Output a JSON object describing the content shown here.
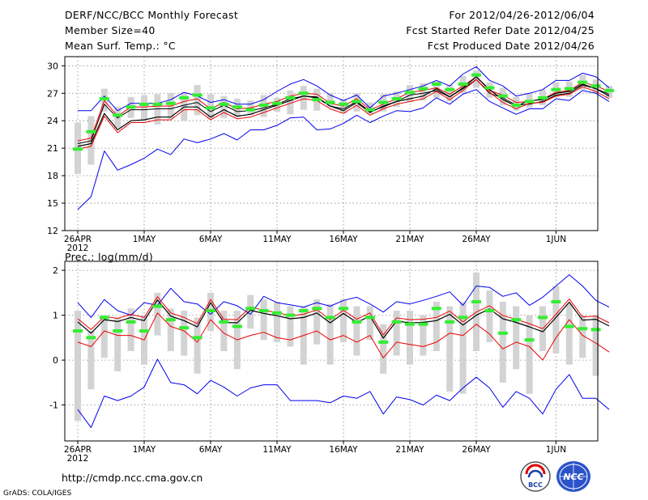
{
  "header": {
    "title": "DERF/NCC/BCC Monthly Forecast",
    "member_size": "Member Size=40",
    "variable": "Mean Surf. Temp.: °C",
    "period": "For 2012/04/26-2012/06/04",
    "started": "Fcst Started Refer Date 2012/04/25",
    "produced": "Fcst Produced Date 2012/04/26"
  },
  "footer": {
    "url": "http://cmdp.ncc.cma.gov.cn",
    "grads": "GrADS: COLA/IGES",
    "logo_bcc": "BCC",
    "logo_ncc": "NCC"
  },
  "colors": {
    "envelope": "#0000ee",
    "ensemble_mean": "#000000",
    "control": "#ee0000",
    "box": "#d3d3d3",
    "median": "#33ee33",
    "grid": "#888888"
  },
  "chart_data": [
    {
      "type": "line",
      "title": "Mean Surf. Temp.: °C",
      "x_labels": [
        "26APR",
        "1MAY",
        "6MAY",
        "11MAY",
        "16MAY",
        "21MAY",
        "26MAY",
        "1JUN"
      ],
      "x_year": "2012",
      "x_label_days": [
        0,
        5,
        10,
        15,
        20,
        25,
        30,
        36
      ],
      "ylim": [
        12,
        31
      ],
      "yticks": [
        12,
        15,
        18,
        21,
        24,
        27,
        30
      ],
      "series": [
        {
          "name": "max",
          "values": [
            25.1,
            25.1,
            26.7,
            25.1,
            25.9,
            25.9,
            25.9,
            26.3,
            27.1,
            26.7,
            26.0,
            26.3,
            25.8,
            25.8,
            26.3,
            27.2,
            28.0,
            28.5,
            27.8,
            26.8,
            26.2,
            26.8,
            25.4,
            26.7,
            27.0,
            27.4,
            27.8,
            28.4,
            27.8,
            29.1,
            29.9,
            28.4,
            27.8,
            26.7,
            27.0,
            27.4,
            28.4,
            28.4,
            29.2,
            28.8,
            27.6
          ]
        },
        {
          "name": "mean_plus",
          "values": [
            21.8,
            22.1,
            26.2,
            24.5,
            25.5,
            25.5,
            25.6,
            25.6,
            26.1,
            26.4,
            25.3,
            26.0,
            25.3,
            25.4,
            25.8,
            26.1,
            26.7,
            27.0,
            26.9,
            25.9,
            25.6,
            26.4,
            25.2,
            25.8,
            26.4,
            27.1,
            27.3,
            27.6,
            26.9,
            27.8,
            28.8,
            27.3,
            26.8,
            26.0,
            26.1,
            26.4,
            27.1,
            27.3,
            28.2,
            27.8,
            27.2
          ]
        },
        {
          "name": "control_plus",
          "values": [
            21.5,
            21.8,
            25.8,
            24.3,
            25.2,
            25.2,
            25.3,
            25.3,
            25.7,
            26.0,
            25.0,
            25.7,
            25.0,
            25.1,
            25.4,
            25.8,
            26.4,
            26.7,
            26.6,
            25.6,
            25.3,
            26.1,
            25.0,
            25.5,
            26.1,
            26.8,
            27.0,
            27.3,
            26.6,
            27.5,
            28.5,
            27.0,
            26.5,
            25.7,
            25.8,
            26.1,
            26.8,
            27.0,
            27.9,
            27.5,
            26.9
          ]
        },
        {
          "name": "ensemble_mean",
          "values": [
            21.2,
            21.5,
            24.8,
            23.0,
            24.0,
            24.1,
            24.4,
            24.4,
            25.5,
            25.5,
            24.4,
            25.2,
            24.5,
            24.7,
            25.2,
            25.7,
            26.2,
            26.7,
            26.5,
            25.6,
            25.1,
            26.0,
            24.9,
            25.6,
            26.1,
            26.4,
            26.7,
            27.5,
            26.6,
            27.6,
            28.8,
            27.4,
            26.3,
            25.6,
            26.2,
            26.3,
            27.0,
            27.2,
            28.0,
            27.5,
            26.7
          ]
        },
        {
          "name": "control_minus",
          "values": [
            20.9,
            21.2,
            24.5,
            22.7,
            23.8,
            23.8,
            24.1,
            24.1,
            25.2,
            25.2,
            24.1,
            24.9,
            24.2,
            24.4,
            24.9,
            25.4,
            25.9,
            26.4,
            26.2,
            25.3,
            24.8,
            25.7,
            24.6,
            25.3,
            25.8,
            26.1,
            26.4,
            27.2,
            26.3,
            27.3,
            28.5,
            27.1,
            26.0,
            25.3,
            25.9,
            26.0,
            26.7,
            26.9,
            27.7,
            27.2,
            26.4
          ]
        },
        {
          "name": "min",
          "values": [
            14.3,
            15.7,
            20.7,
            18.6,
            19.2,
            19.9,
            20.9,
            20.3,
            22.0,
            21.6,
            22.0,
            22.6,
            21.9,
            23.0,
            23.0,
            23.5,
            24.3,
            24.4,
            23.0,
            23.1,
            23.7,
            24.6,
            23.8,
            24.5,
            25.1,
            25.0,
            25.4,
            26.5,
            25.8,
            26.9,
            27.4,
            26.1,
            25.4,
            24.7,
            25.3,
            25.3,
            26.4,
            26.2,
            27.3,
            27.0,
            26.1
          ]
        }
      ],
      "boxes": [
        {
          "day": 0,
          "lo": 18.2,
          "hi": 23.8,
          "med": 20.9
        },
        {
          "day": 1,
          "lo": 19.2,
          "hi": 24.5,
          "med": 22.8
        },
        {
          "day": 2,
          "lo": 25.0,
          "hi": 27.5,
          "med": 26.4
        },
        {
          "day": 3,
          "lo": 23.2,
          "hi": 25.5,
          "med": 24.6
        },
        {
          "day": 4,
          "lo": 24.3,
          "hi": 26.6,
          "med": 25.5
        },
        {
          "day": 5,
          "lo": 24.0,
          "hi": 26.8,
          "med": 25.8
        },
        {
          "day": 6,
          "lo": 23.6,
          "hi": 26.9,
          "med": 25.8
        },
        {
          "day": 7,
          "lo": 24.2,
          "hi": 27.0,
          "med": 25.9
        },
        {
          "day": 8,
          "lo": 24.0,
          "hi": 27.1,
          "med": 26.5
        },
        {
          "day": 9,
          "lo": 24.6,
          "hi": 27.9,
          "med": 26.8
        },
        {
          "day": 10,
          "lo": 24.2,
          "hi": 26.9,
          "med": 25.4
        },
        {
          "day": 11,
          "lo": 24.3,
          "hi": 26.7,
          "med": 25.8
        },
        {
          "day": 12,
          "lo": 24.4,
          "hi": 26.4,
          "med": 25.5
        },
        {
          "day": 13,
          "lo": 24.6,
          "hi": 26.2,
          "med": 25.2
        },
        {
          "day": 14,
          "lo": 24.4,
          "hi": 26.8,
          "med": 25.7
        },
        {
          "day": 15,
          "lo": 25.0,
          "hi": 26.5,
          "med": 25.9
        },
        {
          "day": 16,
          "lo": 24.7,
          "hi": 27.3,
          "med": 26.5
        },
        {
          "day": 17,
          "lo": 25.2,
          "hi": 27.8,
          "med": 27.0
        },
        {
          "day": 18,
          "lo": 25.1,
          "hi": 27.5,
          "med": 26.3
        },
        {
          "day": 19,
          "lo": 25.5,
          "hi": 27.0,
          "med": 26.0
        },
        {
          "day": 20,
          "lo": 24.8,
          "hi": 26.4,
          "med": 25.8
        },
        {
          "day": 21,
          "lo": 25.0,
          "hi": 27.0,
          "med": 26.1
        },
        {
          "day": 22,
          "lo": 24.7,
          "hi": 26.0,
          "med": 25.2
        },
        {
          "day": 23,
          "lo": 25.0,
          "hi": 26.9,
          "med": 26.0
        },
        {
          "day": 24,
          "lo": 25.5,
          "hi": 27.2,
          "med": 26.4
        },
        {
          "day": 25,
          "lo": 26.0,
          "hi": 27.9,
          "med": 27.1
        },
        {
          "day": 26,
          "lo": 26.2,
          "hi": 28.1,
          "med": 27.5
        },
        {
          "day": 27,
          "lo": 26.5,
          "hi": 28.3,
          "med": 28.0
        },
        {
          "day": 28,
          "lo": 26.1,
          "hi": 27.9,
          "med": 27.4
        },
        {
          "day": 29,
          "lo": 27.0,
          "hi": 28.9,
          "med": 28.0
        },
        {
          "day": 30,
          "lo": 27.6,
          "hi": 29.5,
          "med": 29.0
        },
        {
          "day": 31,
          "lo": 26.5,
          "hi": 28.2,
          "med": 27.6
        },
        {
          "day": 32,
          "lo": 25.7,
          "hi": 27.6,
          "med": 26.7
        },
        {
          "day": 33,
          "lo": 25.1,
          "hi": 26.6,
          "med": 25.7
        },
        {
          "day": 34,
          "lo": 25.4,
          "hi": 27.0,
          "med": 26.1
        },
        {
          "day": 35,
          "lo": 25.7,
          "hi": 27.4,
          "med": 26.5
        },
        {
          "day": 36,
          "lo": 26.6,
          "hi": 28.2,
          "med": 27.4
        },
        {
          "day": 37,
          "lo": 26.6,
          "hi": 28.3,
          "med": 27.5
        },
        {
          "day": 38,
          "lo": 27.4,
          "hi": 29.0,
          "med": 28.2
        },
        {
          "day": 39,
          "lo": 27.0,
          "hi": 28.5,
          "med": 27.8
        },
        {
          "day": 40,
          "lo": 26.5,
          "hi": 27.8,
          "med": 27.3
        }
      ]
    },
    {
      "type": "line",
      "title": "Prec.: log(mm/d)",
      "x_labels": [
        "26APR",
        "1MAY",
        "6MAY",
        "11MAY",
        "16MAY",
        "21MAY",
        "26MAY",
        "1JUN"
      ],
      "x_year": "2012",
      "x_label_days": [
        0,
        5,
        10,
        15,
        20,
        25,
        30,
        36
      ],
      "ylim": [
        -1.8,
        2.2
      ],
      "yticks": [
        -1,
        0,
        1,
        2
      ],
      "series": [
        {
          "name": "max",
          "values": [
            1.28,
            0.95,
            1.35,
            1.1,
            1.0,
            1.28,
            1.22,
            1.6,
            1.3,
            1.25,
            1.02,
            1.3,
            1.21,
            1.02,
            1.42,
            1.28,
            1.23,
            1.18,
            1.28,
            1.2,
            1.33,
            1.4,
            1.25,
            1.07,
            1.3,
            1.25,
            1.33,
            1.42,
            1.52,
            1.22,
            1.65,
            1.62,
            1.42,
            1.5,
            1.22,
            1.4,
            1.65,
            1.9,
            1.65,
            1.33,
            1.18
          ]
        },
        {
          "name": "mean_plus",
          "values": [
            0.92,
            0.68,
            0.97,
            0.93,
            1.02,
            0.95,
            1.41,
            1.05,
            0.95,
            0.81,
            1.35,
            0.91,
            0.9,
            1.18,
            1.11,
            1.06,
            0.99,
            1.02,
            1.12,
            0.9,
            1.11,
            0.91,
            1.05,
            0.56,
            0.94,
            0.9,
            0.91,
            0.95,
            1.09,
            0.85,
            1.07,
            1.21,
            0.99,
            0.91,
            0.81,
            0.7,
            1.02,
            1.36,
            0.96,
            0.98,
            0.83
          ]
        },
        {
          "name": "ensemble_mean",
          "values": [
            0.85,
            0.6,
            0.9,
            0.86,
            0.95,
            0.88,
            1.34,
            0.98,
            0.88,
            0.74,
            1.28,
            0.84,
            0.83,
            1.11,
            1.04,
            0.99,
            0.92,
            0.95,
            1.05,
            0.83,
            1.04,
            0.84,
            0.98,
            0.49,
            0.87,
            0.83,
            0.84,
            0.88,
            1.02,
            0.78,
            1.0,
            1.14,
            0.92,
            0.84,
            0.74,
            0.63,
            0.95,
            1.29,
            0.89,
            0.91,
            0.76
          ]
        },
        {
          "name": "control",
          "values": [
            0.4,
            0.3,
            0.65,
            0.55,
            0.55,
            0.45,
            1.05,
            0.75,
            0.65,
            0.4,
            0.9,
            0.6,
            0.45,
            0.55,
            0.62,
            0.5,
            0.45,
            0.55,
            0.65,
            0.45,
            0.55,
            0.4,
            0.55,
            0.05,
            0.4,
            0.35,
            0.3,
            0.4,
            0.6,
            0.55,
            0.8,
            0.58,
            0.25,
            0.4,
            0.3,
            0.0,
            0.5,
            0.9,
            0.55,
            0.38,
            0.18
          ]
        },
        {
          "name": "min",
          "values": [
            -1.1,
            -1.5,
            -0.8,
            -0.9,
            -0.8,
            -0.6,
            0.02,
            -0.5,
            -0.55,
            -0.75,
            -0.45,
            -0.6,
            -0.8,
            -0.62,
            -0.55,
            -0.55,
            -0.9,
            -0.9,
            -0.9,
            -0.95,
            -0.8,
            -0.85,
            -0.7,
            -1.2,
            -0.82,
            -0.88,
            -1.0,
            -0.78,
            -0.9,
            -0.62,
            -0.38,
            -0.62,
            -1.05,
            -0.7,
            -0.85,
            -1.2,
            -0.65,
            -0.32,
            -0.85,
            -0.85,
            -1.1
          ]
        }
      ],
      "boxes": [
        {
          "day": 0,
          "lo": -1.35,
          "hi": 1.1,
          "med": 0.65
        },
        {
          "day": 1,
          "lo": -0.65,
          "hi": 0.65,
          "med": 0.5
        },
        {
          "day": 2,
          "lo": 0.05,
          "hi": 1.0,
          "med": 0.95
        },
        {
          "day": 3,
          "lo": -0.25,
          "hi": 0.95,
          "med": 0.65
        },
        {
          "day": 4,
          "lo": 0.2,
          "hi": 1.15,
          "med": 0.85
        },
        {
          "day": 5,
          "lo": -0.1,
          "hi": 1.0,
          "med": 0.65
        },
        {
          "day": 6,
          "lo": 0.55,
          "hi": 1.5,
          "med": 1.2
        },
        {
          "day": 7,
          "lo": 0.2,
          "hi": 1.15,
          "med": 0.9
        },
        {
          "day": 8,
          "lo": 0.1,
          "hi": 1.1,
          "med": 0.72
        },
        {
          "day": 9,
          "lo": -0.3,
          "hi": 0.95,
          "med": 0.5
        },
        {
          "day": 10,
          "lo": 0.65,
          "hi": 1.5,
          "med": 1.1
        },
        {
          "day": 11,
          "lo": 0.2,
          "hi": 1.1,
          "med": 0.85
        },
        {
          "day": 12,
          "lo": -0.2,
          "hi": 1.1,
          "med": 0.75
        },
        {
          "day": 13,
          "lo": 0.7,
          "hi": 1.45,
          "med": 1.15
        },
        {
          "day": 14,
          "lo": 0.45,
          "hi": 1.35,
          "med": 1.1
        },
        {
          "day": 15,
          "lo": 0.4,
          "hi": 1.3,
          "med": 1.05
        },
        {
          "day": 16,
          "lo": 0.3,
          "hi": 1.2,
          "med": 1.0
        },
        {
          "day": 17,
          "lo": -0.1,
          "hi": 1.2,
          "med": 1.1
        },
        {
          "day": 18,
          "lo": 0.35,
          "hi": 1.35,
          "med": 1.15
        },
        {
          "day": 19,
          "lo": -0.1,
          "hi": 1.25,
          "med": 0.95
        },
        {
          "day": 20,
          "lo": 0.4,
          "hi": 1.35,
          "med": 1.15
        },
        {
          "day": 21,
          "lo": 0.1,
          "hi": 1.2,
          "med": 0.85
        },
        {
          "day": 22,
          "lo": 0.45,
          "hi": 1.2,
          "med": 0.95
        },
        {
          "day": 23,
          "lo": -0.3,
          "hi": 0.8,
          "med": 0.4
        },
        {
          "day": 24,
          "lo": 0.1,
          "hi": 1.1,
          "med": 0.85
        },
        {
          "day": 25,
          "lo": -0.1,
          "hi": 1.1,
          "med": 0.8
        },
        {
          "day": 26,
          "lo": 0.1,
          "hi": 1.0,
          "med": 0.8
        },
        {
          "day": 27,
          "lo": 0.2,
          "hi": 1.3,
          "med": 1.15
        },
        {
          "day": 28,
          "lo": -0.7,
          "hi": 1.2,
          "med": 0.85
        },
        {
          "day": 29,
          "lo": -0.75,
          "hi": 1.3,
          "med": 0.95
        },
        {
          "day": 30,
          "lo": 0.2,
          "hi": 1.95,
          "med": 1.3
        },
        {
          "day": 31,
          "lo": 0.4,
          "hi": 1.55,
          "med": 1.1
        },
        {
          "day": 32,
          "lo": -0.5,
          "hi": 1.3,
          "med": 0.6
        },
        {
          "day": 33,
          "lo": -0.2,
          "hi": 1.2,
          "med": 0.9
        },
        {
          "day": 34,
          "lo": -0.75,
          "hi": 1.0,
          "med": 0.45
        },
        {
          "day": 35,
          "lo": 0.2,
          "hi": 1.2,
          "med": 0.95
        },
        {
          "day": 36,
          "lo": 0.15,
          "hi": 1.65,
          "med": 1.3
        },
        {
          "day": 37,
          "lo": -0.1,
          "hi": 1.25,
          "med": 0.75
        },
        {
          "day": 38,
          "lo": 0.05,
          "hi": 1.0,
          "med": 0.7
        },
        {
          "day": 39,
          "lo": -0.35,
          "hi": 1.0,
          "med": 0.68
        }
      ]
    }
  ]
}
